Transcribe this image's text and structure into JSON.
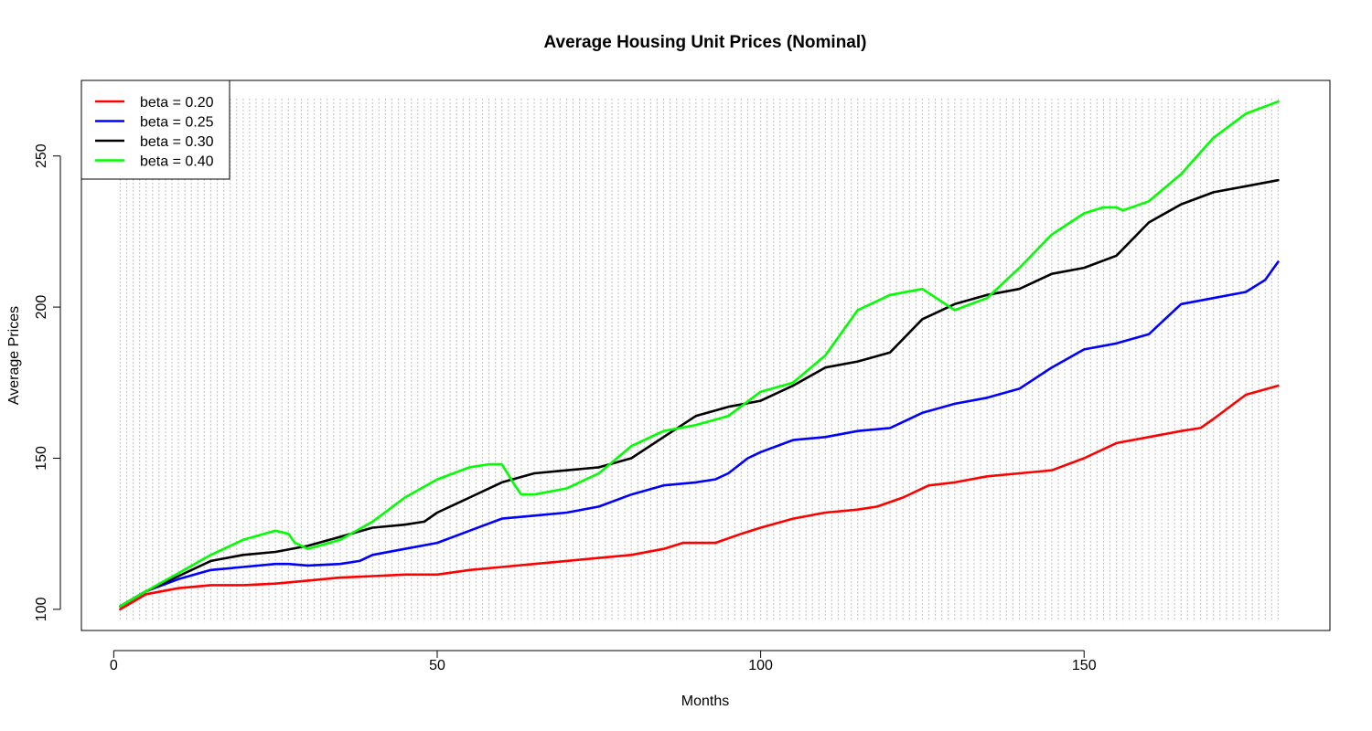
{
  "chart_data": {
    "type": "line",
    "title": "Average Housing Unit Prices (Nominal)",
    "xlabel": "Months",
    "ylabel": "Average Prices",
    "xlim": [
      -5,
      188
    ],
    "ylim": [
      93,
      275
    ],
    "xticks": [
      0,
      50,
      100,
      150
    ],
    "yticks": [
      100,
      150,
      200,
      250
    ],
    "grid": "dense dotted vertical grey lines",
    "legend_position": "top-left",
    "series": [
      {
        "name": "beta = 0.20",
        "color": "#ff0000",
        "x": [
          1,
          5,
          10,
          15,
          20,
          25,
          30,
          35,
          40,
          45,
          50,
          55,
          60,
          65,
          70,
          75,
          80,
          85,
          88,
          93,
          97,
          100,
          105,
          110,
          115,
          118,
          122,
          126,
          130,
          135,
          140,
          145,
          150,
          155,
          160,
          165,
          168,
          170,
          175,
          180
        ],
        "y": [
          100,
          105,
          107,
          108,
          108,
          108.5,
          109.5,
          110.5,
          111,
          111.5,
          111.5,
          113,
          114,
          115,
          116,
          117,
          118,
          120,
          122,
          122,
          125,
          127,
          130,
          132,
          133,
          134,
          137,
          141,
          142,
          144,
          145,
          146,
          150,
          155,
          157,
          159,
          160,
          163,
          171,
          174
        ]
      },
      {
        "name": "beta = 0.25",
        "color": "#0000ff",
        "x": [
          1,
          5,
          10,
          15,
          20,
          25,
          27,
          30,
          35,
          38,
          40,
          45,
          50,
          55,
          60,
          65,
          70,
          75,
          80,
          85,
          90,
          93,
          95,
          98,
          100,
          105,
          110,
          115,
          120,
          125,
          130,
          135,
          140,
          145,
          150,
          155,
          160,
          165,
          170,
          175,
          178,
          180
        ],
        "y": [
          101,
          106,
          110,
          113,
          114,
          115,
          115,
          114.5,
          115,
          116,
          118,
          120,
          122,
          126,
          130,
          131,
          132,
          134,
          138,
          141,
          142,
          143,
          145,
          150,
          152,
          156,
          157,
          159,
          160,
          165,
          168,
          170,
          173,
          180,
          186,
          188,
          191,
          201,
          203,
          205,
          209,
          215
        ]
      },
      {
        "name": "beta = 0.30",
        "color": "#000000",
        "x": [
          1,
          5,
          10,
          15,
          20,
          25,
          30,
          35,
          40,
          45,
          48,
          50,
          55,
          60,
          65,
          70,
          75,
          80,
          85,
          90,
          95,
          100,
          105,
          110,
          115,
          120,
          125,
          130,
          135,
          140,
          145,
          150,
          155,
          160,
          165,
          170,
          175,
          180
        ],
        "y": [
          101,
          106,
          111,
          116,
          118,
          119,
          121,
          124,
          127,
          128,
          129,
          132,
          137,
          142,
          145,
          146,
          147,
          150,
          157,
          164,
          167,
          169,
          174,
          180,
          182,
          185,
          196,
          201,
          204,
          206,
          211,
          213,
          217,
          228,
          234,
          238,
          240,
          242
        ]
      },
      {
        "name": "beta = 0.40",
        "color": "#00ff00",
        "x": [
          1,
          5,
          10,
          15,
          20,
          25,
          27,
          28,
          30,
          35,
          40,
          45,
          50,
          55,
          58,
          60,
          62,
          63,
          65,
          70,
          75,
          80,
          85,
          90,
          95,
          100,
          105,
          110,
          115,
          120,
          125,
          130,
          135,
          140,
          145,
          150,
          153,
          155,
          156,
          160,
          165,
          170,
          175,
          180
        ],
        "y": [
          101,
          106,
          112,
          118,
          123,
          126,
          125,
          122,
          120,
          123,
          129,
          137,
          143,
          147,
          148,
          148,
          141,
          138,
          138,
          140,
          145,
          154,
          159,
          161,
          164,
          172,
          175,
          184,
          199,
          204,
          206,
          199,
          203,
          213,
          224,
          231,
          233,
          233,
          232,
          235,
          244,
          256,
          264,
          268
        ]
      }
    ]
  }
}
